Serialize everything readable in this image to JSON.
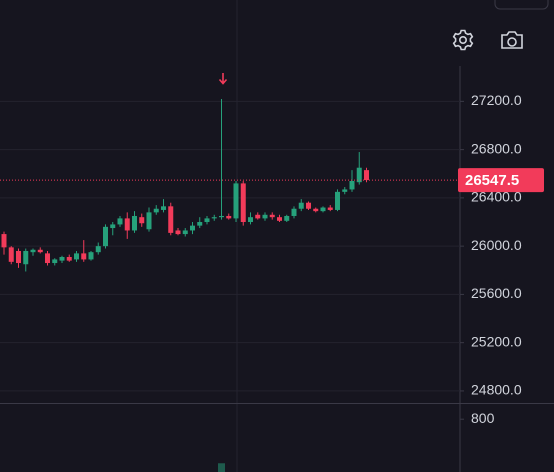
{
  "chart_data": {
    "type": "candlestick",
    "open": [
      26100,
      25990,
      25960,
      25850,
      25950,
      25970,
      25940,
      25860,
      25880,
      25910,
      25890,
      25940,
      25890,
      25950,
      26000,
      26150,
      26180,
      26230,
      26130,
      26240,
      26140,
      26280,
      26300,
      26330,
      26130,
      26100,
      26130,
      26170,
      26200,
      26230,
      26240,
      26250,
      26230,
      26520,
      26200,
      26260,
      26230,
      26260,
      26240,
      26210,
      26250,
      26310,
      26360,
      26310,
      26290,
      26320,
      26300,
      26450,
      26470,
      26530,
      26630
    ],
    "high": [
      26120,
      26000,
      25980,
      25980,
      25980,
      25990,
      25960,
      25900,
      25920,
      25930,
      25960,
      26050,
      25960,
      26030,
      26180,
      26200,
      26250,
      26280,
      26290,
      26270,
      26320,
      26340,
      26390,
      26360,
      26150,
      26150,
      26200,
      26240,
      26250,
      26260,
      27220,
      26270,
      26540,
      26540,
      26280,
      26280,
      26280,
      26280,
      26260,
      26260,
      26330,
      26390,
      26370,
      26320,
      26330,
      26340,
      26470,
      26490,
      26630,
      26780,
      26650
    ],
    "low": [
      25930,
      25850,
      25820,
      25790,
      25920,
      25940,
      25840,
      25840,
      25860,
      25870,
      25870,
      25870,
      25880,
      25930,
      25980,
      26090,
      26160,
      26060,
      26110,
      26160,
      26120,
      26260,
      26280,
      26090,
      26090,
      26080,
      26100,
      26150,
      26180,
      26210,
      26220,
      26220,
      26200,
      26170,
      26180,
      26220,
      26210,
      26220,
      26200,
      26200,
      26230,
      26290,
      26300,
      26280,
      26280,
      26290,
      26290,
      26430,
      26450,
      26510,
      26530
    ],
    "close": [
      25990,
      25870,
      25860,
      25960,
      25970,
      25950,
      25860,
      25890,
      25910,
      25880,
      25940,
      25890,
      25950,
      26000,
      26160,
      26180,
      26230,
      26130,
      26250,
      26190,
      26280,
      26310,
      26330,
      26110,
      26100,
      26130,
      26170,
      26200,
      26230,
      26240,
      26250,
      26230,
      26520,
      26200,
      26240,
      26230,
      26260,
      26240,
      26210,
      26250,
      26310,
      26360,
      26310,
      26290,
      26320,
      26300,
      26450,
      26470,
      26540,
      26650,
      26547.5
    ],
    "volume": [
      null,
      null,
      null,
      null,
      null,
      null,
      null,
      null,
      null,
      null,
      null,
      null,
      null,
      null,
      null,
      null,
      null,
      null,
      null,
      null,
      null,
      null,
      null,
      null,
      null,
      null,
      null,
      null,
      null,
      null,
      220,
      null,
      null,
      null,
      null,
      null,
      null,
      null,
      null,
      null,
      null,
      null,
      null,
      null,
      null,
      null,
      null,
      null,
      null,
      null,
      null
    ],
    "up_color": "#26a17b",
    "down_color": "#f23b5a",
    "ylim": [
      24700,
      28040
    ],
    "yticks": [
      {
        "value": 24800,
        "label": "24800.0"
      },
      {
        "value": 25200,
        "label": "25200.0"
      },
      {
        "value": 25600,
        "label": "25600.0"
      },
      {
        "value": 26000,
        "label": "26000.0"
      },
      {
        "value": 26400,
        "label": "26400.0"
      },
      {
        "value": 26800,
        "label": "26800.0"
      },
      {
        "value": 27200,
        "label": "27200.0"
      }
    ],
    "last_price": 26547.5,
    "volume_ylim": [
      0,
      1000
    ],
    "volume_yticks": [
      800
    ],
    "grid": true
  }
}
